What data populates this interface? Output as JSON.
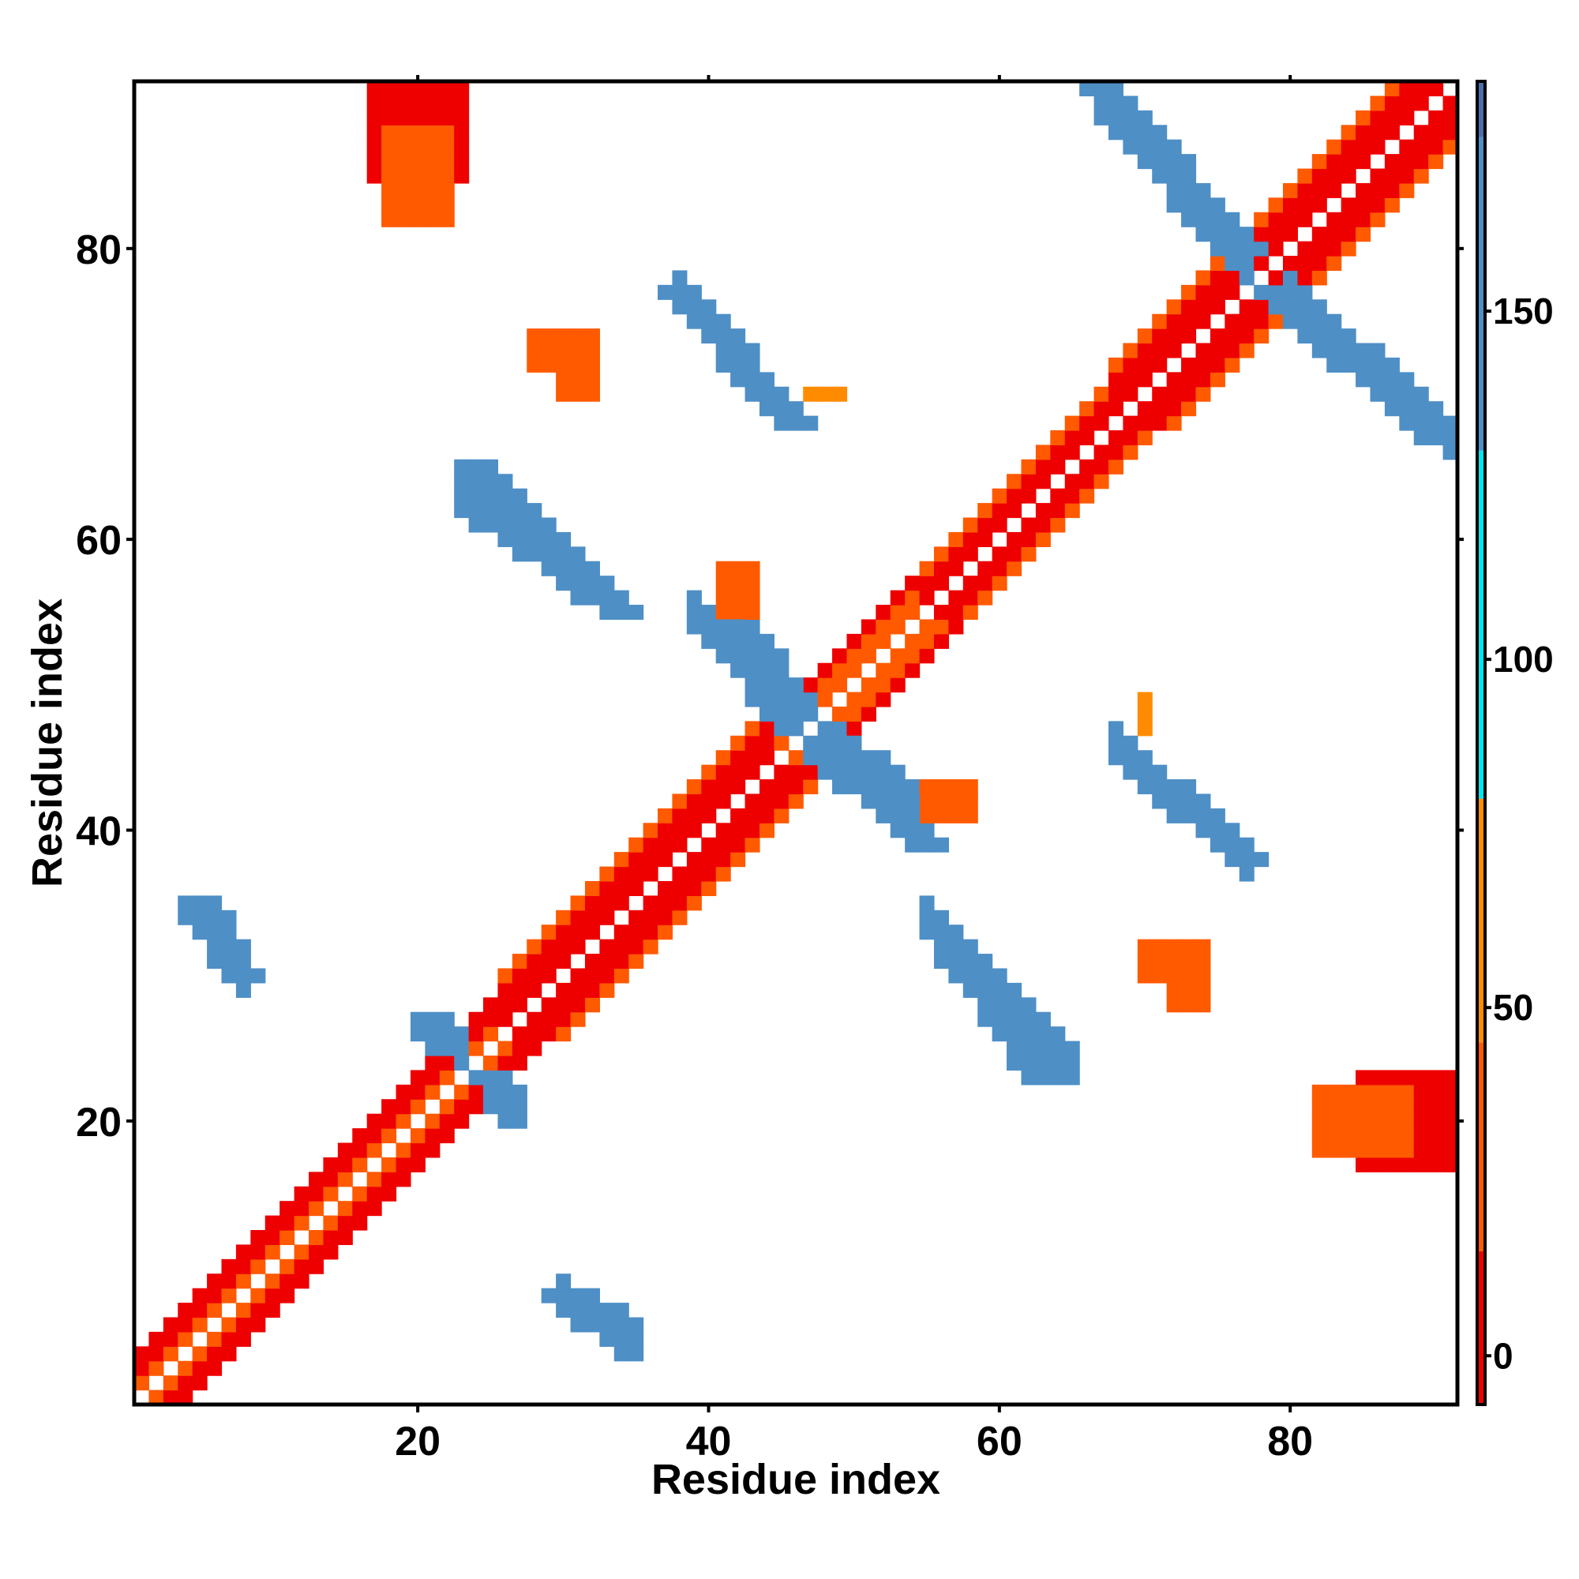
{
  "chart_data": {
    "type": "heatmap",
    "title": "",
    "xlabel": "Residue index",
    "ylabel": "Residue index",
    "xlim": [
      1,
      91
    ],
    "ylim": [
      1,
      91
    ],
    "x_ticks": [
      20,
      40,
      60,
      80
    ],
    "y_ticks": [
      20,
      40,
      60,
      80
    ],
    "colorbar": {
      "range": [
        -7,
        183
      ],
      "ticks": [
        0,
        50,
        100,
        150
      ],
      "colors": [
        "#ee0000",
        "#ff5a00",
        "#ff8c00",
        "#00e5ee",
        "#4e8fc6",
        "#4a6fad"
      ]
    },
    "symmetric": true,
    "band_segments": [
      {
        "x0": 1,
        "y0": 1,
        "x1": 11,
        "y1": 11,
        "offsets": [
          [
            1,
            15
          ],
          [
            2,
            5
          ],
          [
            3,
            2
          ]
        ]
      },
      {
        "x0": 11,
        "y0": 11,
        "x1": 26,
        "y1": 26,
        "offsets": [
          [
            1,
            25
          ],
          [
            2,
            10
          ],
          [
            3,
            3
          ]
        ]
      },
      {
        "x0": 26,
        "y0": 26,
        "x1": 45,
        "y1": 45,
        "offsets": [
          [
            1,
            3
          ],
          [
            2,
            3
          ],
          [
            3,
            10
          ],
          [
            4,
            40
          ]
        ]
      },
      {
        "x0": 45,
        "y0": 45,
        "x1": 55,
        "y1": 55,
        "offsets": [
          [
            1,
            40
          ],
          [
            2,
            25
          ],
          [
            3,
            8
          ]
        ]
      },
      {
        "x0": 55,
        "y0": 55,
        "x1": 68,
        "y1": 68,
        "offsets": [
          [
            1,
            5
          ],
          [
            2,
            3
          ],
          [
            3,
            30
          ]
        ]
      },
      {
        "x0": 68,
        "y0": 68,
        "x1": 91,
        "y1": 91,
        "offsets": [
          [
            1,
            4
          ],
          [
            2,
            3
          ],
          [
            3,
            3
          ],
          [
            4,
            40
          ]
        ]
      }
    ],
    "strand_pairs": [
      {
        "x0": 5,
        "y0": 35,
        "x1": 8,
        "y1": 30,
        "value": 150,
        "width": 2
      },
      {
        "x0": 29,
        "y0": 8,
        "x1": 34,
        "y1": 4,
        "value": 160,
        "width": 2
      },
      {
        "x0": 23,
        "y0": 65,
        "x1": 33,
        "y1": 55,
        "value": 160,
        "width": 3
      },
      {
        "x0": 37,
        "y0": 77,
        "x1": 45,
        "y1": 68,
        "value": 160,
        "width": 3
      },
      {
        "x0": 40,
        "y0": 55,
        "x1": 46,
        "y1": 48,
        "value": 150,
        "width": 3
      },
      {
        "x0": 46,
        "y0": 46,
        "x1": 54,
        "y1": 39,
        "value": 150,
        "width": 3
      },
      {
        "x0": 55,
        "y0": 33,
        "x1": 62,
        "y1": 23,
        "value": 160,
        "width": 3
      },
      {
        "x0": 68,
        "y0": 45,
        "x1": 76,
        "y1": 38,
        "value": 160,
        "width": 3
      },
      {
        "x0": 66,
        "y0": 91,
        "x1": 76,
        "y1": 80,
        "value": 160,
        "width": 3
      },
      {
        "x0": 78,
        "y0": 77,
        "x1": 89,
        "y1": 67,
        "value": 160,
        "width": 3
      },
      {
        "x0": 21,
        "y0": 27,
        "x1": 26,
        "y1": 20,
        "value": 140,
        "width": 2
      }
    ],
    "blobs": [
      {
        "x": 20,
        "y": 88,
        "rx": 3,
        "ry": 3,
        "value": 10
      },
      {
        "x": 85,
        "y": 20,
        "rx": 3,
        "ry": 2,
        "value": 20
      },
      {
        "x": 30,
        "y": 73,
        "rx": 2,
        "ry": 1,
        "value": 25
      },
      {
        "x": 72,
        "y": 31,
        "rx": 2,
        "ry": 1,
        "value": 30
      },
      {
        "x": 42,
        "y": 56,
        "rx": 1,
        "ry": 1,
        "value": 15
      },
      {
        "x": 57,
        "y": 42,
        "rx": 1,
        "ry": 1,
        "value": 20
      },
      {
        "x": 48,
        "y": 70,
        "rx": 1,
        "ry": 0,
        "value": 60
      },
      {
        "x": 70,
        "y": 48,
        "rx": 0,
        "ry": 1,
        "value": 60
      }
    ]
  }
}
